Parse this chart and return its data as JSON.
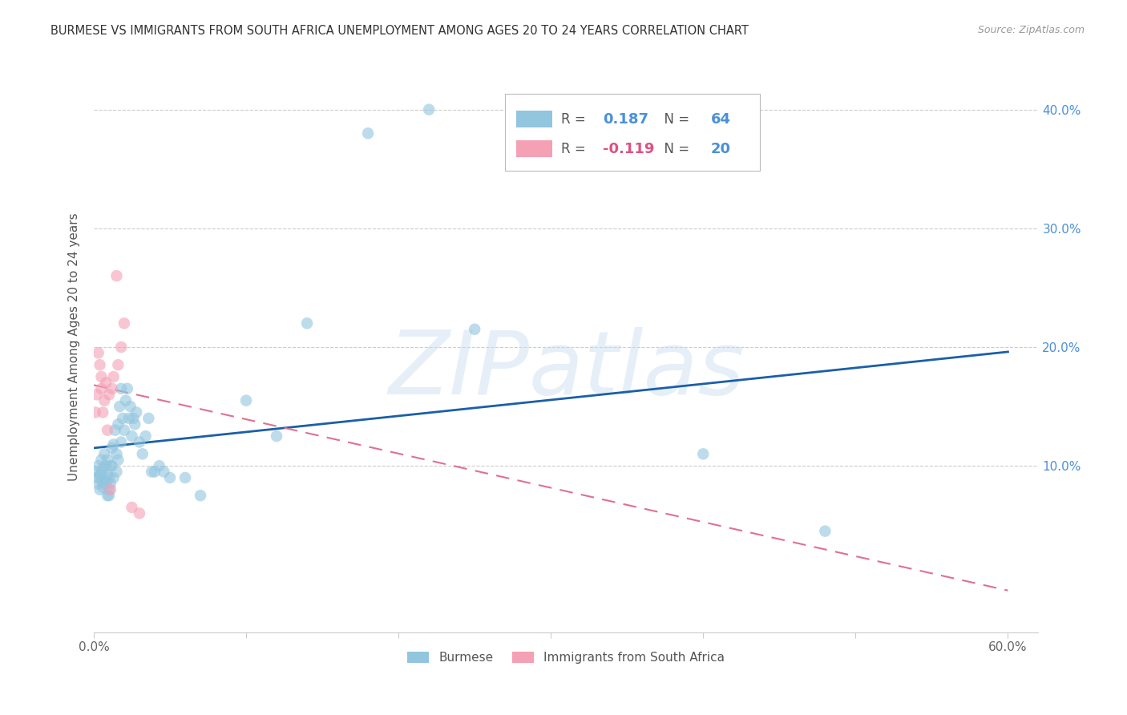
{
  "title": "BURMESE VS IMMIGRANTS FROM SOUTH AFRICA UNEMPLOYMENT AMONG AGES 20 TO 24 YEARS CORRELATION CHART",
  "source": "Source: ZipAtlas.com",
  "ylabel": "Unemployment Among Ages 20 to 24 years",
  "xlim": [
    0.0,
    0.62
  ],
  "ylim": [
    -0.04,
    0.44
  ],
  "xticks": [
    0.0,
    0.1,
    0.2,
    0.3,
    0.4,
    0.5,
    0.6
  ],
  "yticks": [
    0.1,
    0.2,
    0.3,
    0.4
  ],
  "ytick_labels": [
    "10.0%",
    "20.0%",
    "30.0%",
    "40.0%"
  ],
  "watermark": "ZIPatlas",
  "blue_scatter_x": [
    0.001,
    0.002,
    0.003,
    0.003,
    0.004,
    0.004,
    0.005,
    0.005,
    0.005,
    0.006,
    0.006,
    0.007,
    0.007,
    0.008,
    0.008,
    0.009,
    0.009,
    0.009,
    0.01,
    0.01,
    0.01,
    0.011,
    0.011,
    0.012,
    0.012,
    0.013,
    0.013,
    0.014,
    0.015,
    0.015,
    0.016,
    0.016,
    0.017,
    0.018,
    0.018,
    0.019,
    0.02,
    0.021,
    0.022,
    0.023,
    0.024,
    0.025,
    0.026,
    0.027,
    0.028,
    0.03,
    0.032,
    0.034,
    0.036,
    0.038,
    0.04,
    0.043,
    0.046,
    0.05,
    0.06,
    0.07,
    0.1,
    0.12,
    0.14,
    0.18,
    0.22,
    0.25,
    0.4,
    0.48
  ],
  "blue_scatter_y": [
    0.095,
    0.09,
    0.085,
    0.1,
    0.08,
    0.092,
    0.088,
    0.095,
    0.105,
    0.082,
    0.098,
    0.088,
    0.11,
    0.085,
    0.1,
    0.075,
    0.092,
    0.105,
    0.08,
    0.09,
    0.075,
    0.1,
    0.085,
    0.115,
    0.1,
    0.118,
    0.09,
    0.13,
    0.11,
    0.095,
    0.135,
    0.105,
    0.15,
    0.165,
    0.12,
    0.14,
    0.13,
    0.155,
    0.165,
    0.14,
    0.15,
    0.125,
    0.14,
    0.135,
    0.145,
    0.12,
    0.11,
    0.125,
    0.14,
    0.095,
    0.095,
    0.1,
    0.095,
    0.09,
    0.09,
    0.075,
    0.155,
    0.125,
    0.22,
    0.38,
    0.4,
    0.215,
    0.11,
    0.045
  ],
  "pink_scatter_x": [
    0.001,
    0.002,
    0.003,
    0.004,
    0.005,
    0.005,
    0.006,
    0.007,
    0.008,
    0.009,
    0.01,
    0.011,
    0.012,
    0.013,
    0.015,
    0.016,
    0.018,
    0.02,
    0.025,
    0.03
  ],
  "pink_scatter_y": [
    0.145,
    0.16,
    0.195,
    0.185,
    0.165,
    0.175,
    0.145,
    0.155,
    0.17,
    0.13,
    0.16,
    0.08,
    0.165,
    0.175,
    0.26,
    0.185,
    0.2,
    0.22,
    0.065,
    0.06
  ],
  "blue_line_x": [
    0.0,
    0.6
  ],
  "blue_line_y_start": 0.115,
  "blue_line_y_end": 0.196,
  "pink_line_x": [
    0.0,
    0.6
  ],
  "pink_line_y_start": 0.168,
  "pink_line_y_end": -0.005,
  "blue_color": "#92c5de",
  "pink_color": "#f4a0b5",
  "blue_line_color": "#1a5fa8",
  "pink_line_color": "#e07090",
  "scatter_alpha": 0.6,
  "scatter_size": 110,
  "legend_R_blue": "0.187",
  "legend_N_blue": "64",
  "legend_R_pink": "-0.119",
  "legend_N_pink": "20",
  "legend_label_blue": "Burmese",
  "legend_label_pink": "Immigrants from South Africa"
}
